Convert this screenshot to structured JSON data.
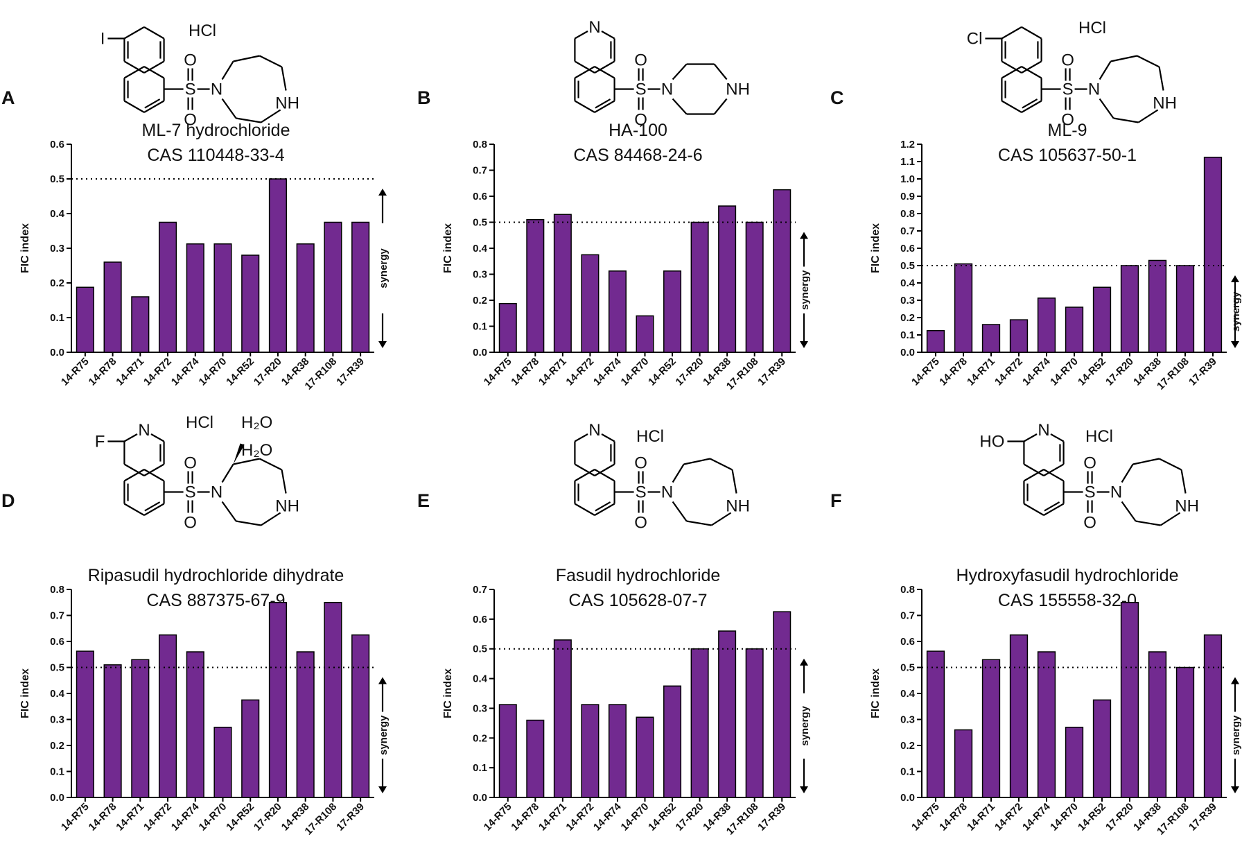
{
  "panels": [
    {
      "label": "A",
      "title_line1": "ML-7 hydrochloride",
      "title_line2": "CAS 110448-33-4",
      "salts": [
        "HCl"
      ],
      "substituent": "I",
      "scaffold": "naphthalene",
      "amine": "homopiperazine"
    },
    {
      "label": "B",
      "title_line1": "HA-100",
      "title_line2": "CAS 84468-24-6",
      "salts": [],
      "substituent": "",
      "scaffold": "isoquinoline",
      "amine": "piperazine"
    },
    {
      "label": "C",
      "title_line1": "ML-9",
      "title_line2": "CAS 105637-50-1",
      "salts": [
        "HCl"
      ],
      "substituent": "Cl",
      "scaffold": "naphthalene",
      "amine": "homopiperazine"
    },
    {
      "label": "D",
      "title_line1": "Ripasudil hydrochloride dihydrate",
      "title_line2": "CAS 887375-67-9",
      "salts": [
        "HCl",
        "H₂O",
        "H₂O"
      ],
      "substituent": "F",
      "scaffold": "isoquinoline",
      "amine": "methyl-homopiperazine"
    },
    {
      "label": "E",
      "title_line1": "Fasudil hydrochloride",
      "title_line2": "CAS 105628-07-7",
      "salts": [
        "HCl"
      ],
      "substituent": "",
      "scaffold": "isoquinoline",
      "amine": "homopiperazine"
    },
    {
      "label": "F",
      "title_line1": "Hydroxyfasudil hydrochloride",
      "title_line2": "CAS 155558-32-0",
      "salts": [
        "HCl"
      ],
      "substituent": "HO",
      "scaffold": "isoquinoline",
      "amine": "homopiperazine"
    }
  ],
  "atoms": {
    "nitrogen": "N",
    "amine_nh": "NH",
    "sulfur": "S",
    "oxygen": "O"
  },
  "colors": {
    "bar": "#722a90",
    "text": "#111111"
  },
  "chart_data": [
    {
      "type": "bar",
      "title": "ML-7 hydrochloride CAS 110448-33-4",
      "ylabel": "FIC index",
      "annotation": "synergy",
      "reference_line": 0.5,
      "ylim": [
        0,
        0.6
      ],
      "yticks": [
        "0.0",
        "0.1",
        "0.2",
        "0.3",
        "0.4",
        "0.5",
        "0.6"
      ],
      "categories": [
        "14-R75",
        "14-R78",
        "14-R71",
        "14-R72",
        "14-R74",
        "14-R70",
        "14-R52",
        "17-R20",
        "14-R38",
        "17-R108",
        "17-R39"
      ],
      "values": [
        0.1875,
        0.26,
        0.16,
        0.375,
        0.3125,
        0.3125,
        0.28,
        0.5,
        0.3125,
        0.375,
        0.375
      ]
    },
    {
      "type": "bar",
      "title": "HA-100 CAS 84468-24-6",
      "ylabel": "FIC index",
      "annotation": "synergy",
      "reference_line": 0.5,
      "ylim": [
        0,
        0.8
      ],
      "yticks": [
        "0.0",
        "0.1",
        "0.2",
        "0.3",
        "0.4",
        "0.5",
        "0.6",
        "0.7",
        "0.8"
      ],
      "categories": [
        "14-R75",
        "14-R78",
        "14-R71",
        "14-R72",
        "14-R74",
        "14-R70",
        "14-R52",
        "17-R20",
        "14-R38",
        "17-R108",
        "17-R39"
      ],
      "values": [
        0.1875,
        0.51,
        0.53,
        0.375,
        0.3125,
        0.14,
        0.3125,
        0.5,
        0.5625,
        0.5,
        0.625
      ]
    },
    {
      "type": "bar",
      "title": "ML-9 CAS 105637-50-1",
      "ylabel": "FIC index",
      "annotation": "synergy",
      "reference_line": 0.5,
      "ylim": [
        0,
        1.2
      ],
      "yticks": [
        "0.0",
        "0.1",
        "0.2",
        "0.3",
        "0.4",
        "0.5",
        "0.6",
        "0.7",
        "0.8",
        "0.9",
        "1.0",
        "1.1",
        "1.2"
      ],
      "categories": [
        "14-R75",
        "14-R78",
        "14-R71",
        "14-R72",
        "14-R74",
        "14-R70",
        "14-R52",
        "17-R20",
        "14-R38",
        "17-R108",
        "17-R39"
      ],
      "values": [
        0.125,
        0.51,
        0.16,
        0.1875,
        0.3125,
        0.26,
        0.375,
        0.5,
        0.53,
        0.5,
        1.125
      ]
    },
    {
      "type": "bar",
      "title": "Ripasudil hydrochloride dihydrate CAS 887375-67-9",
      "ylabel": "FIC index",
      "annotation": "synergy",
      "reference_line": 0.5,
      "ylim": [
        0,
        0.8
      ],
      "yticks": [
        "0.0",
        "0.1",
        "0.2",
        "0.3",
        "0.4",
        "0.5",
        "0.6",
        "0.7",
        "0.8"
      ],
      "categories": [
        "14-R75",
        "14-R78",
        "14-R71",
        "14-R72",
        "14-R74",
        "14-R70",
        "14-R52",
        "17-R20",
        "14-R38",
        "17-R108",
        "17-R39"
      ],
      "values": [
        0.5625,
        0.51,
        0.53,
        0.625,
        0.56,
        0.27,
        0.375,
        0.75,
        0.56,
        0.75,
        0.625
      ]
    },
    {
      "type": "bar",
      "title": "Fasudil hydrochloride CAS 105628-07-7",
      "ylabel": "FIC index",
      "annotation": "synergy",
      "reference_line": 0.5,
      "ylim": [
        0,
        0.7
      ],
      "yticks": [
        "0.0",
        "0.1",
        "0.2",
        "0.3",
        "0.4",
        "0.5",
        "0.6",
        "0.7"
      ],
      "categories": [
        "14-R75",
        "14-R78",
        "14-R71",
        "14-R72",
        "14-R74",
        "14-R70",
        "14-R52",
        "17-R20",
        "14-R38",
        "17-R108",
        "17-R39"
      ],
      "values": [
        0.3125,
        0.26,
        0.53,
        0.3125,
        0.3125,
        0.27,
        0.375,
        0.5,
        0.56,
        0.5,
        0.625
      ]
    },
    {
      "type": "bar",
      "title": "Hydroxyfasudil hydrochloride CAS 155558-32-0",
      "ylabel": "FIC index",
      "annotation": "synergy",
      "reference_line": 0.5,
      "ylim": [
        0,
        0.8
      ],
      "yticks": [
        "0.0",
        "0.1",
        "0.2",
        "0.3",
        "0.4",
        "0.5",
        "0.6",
        "0.7",
        "0.8"
      ],
      "categories": [
        "14-R75",
        "14-R78",
        "14-R71",
        "14-R72",
        "14-R74",
        "14-R70",
        "14-R52",
        "17-R20",
        "14-R38",
        "17-R108",
        "17-R39"
      ],
      "values": [
        0.5625,
        0.26,
        0.53,
        0.625,
        0.56,
        0.27,
        0.375,
        0.75,
        0.56,
        0.5,
        0.625
      ]
    }
  ]
}
